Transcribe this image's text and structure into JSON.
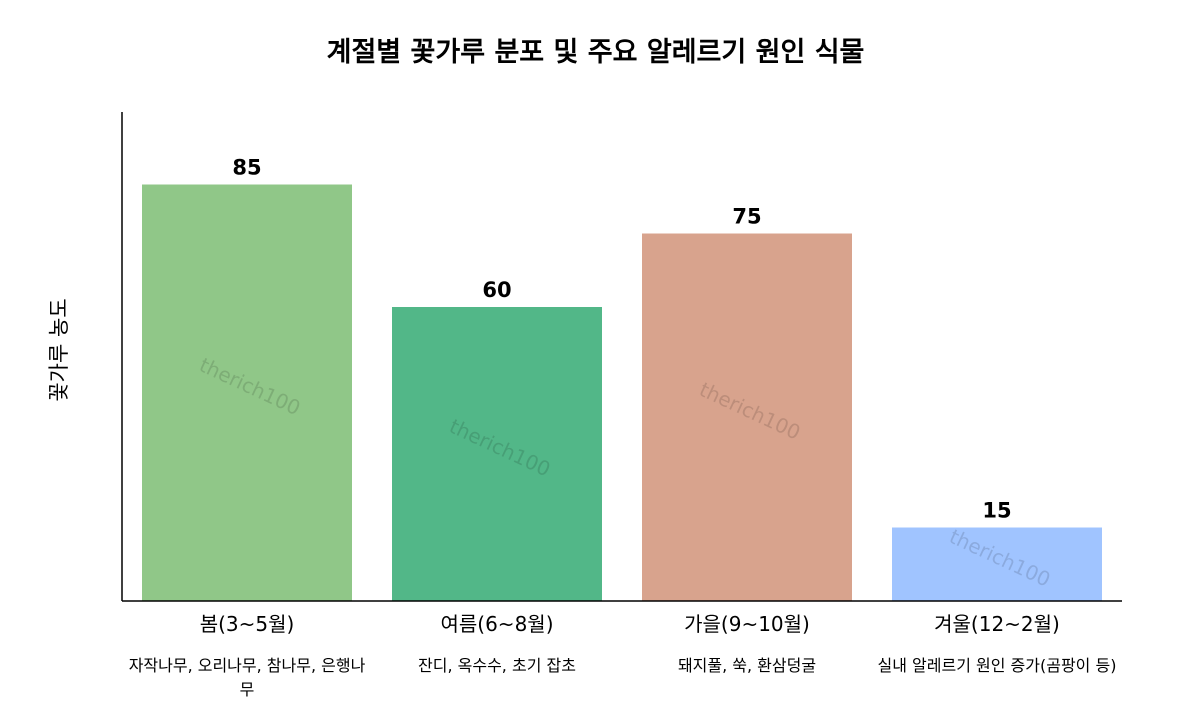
{
  "chart_data": {
    "type": "bar",
    "title": "계절별 꽃가루 분포 및 주요 알레르기 원인 식물",
    "xlabel": "",
    "ylabel": "꽃가루 농도",
    "ylim": [
      0,
      100
    ],
    "grid": false,
    "categories": [
      "봄(3~5월)",
      "여름(6~8월)",
      "가을(9~10월)",
      "겨울(12~2월)"
    ],
    "sublabels": [
      [
        "자작나무, 오리나무, 참나무, 은행나",
        "무"
      ],
      [
        "잔디, 옥수수, 초기 잡초"
      ],
      [
        "돼지풀, 쑥, 환삼덩굴"
      ],
      [
        "실내 알레르기 원인 증가(곰팡이 등)"
      ]
    ],
    "values": [
      85,
      60,
      75,
      15
    ],
    "colors": [
      "#90c788",
      "#52b788",
      "#d8a38d",
      "#a0c4ff"
    ],
    "watermark": "therich100"
  }
}
